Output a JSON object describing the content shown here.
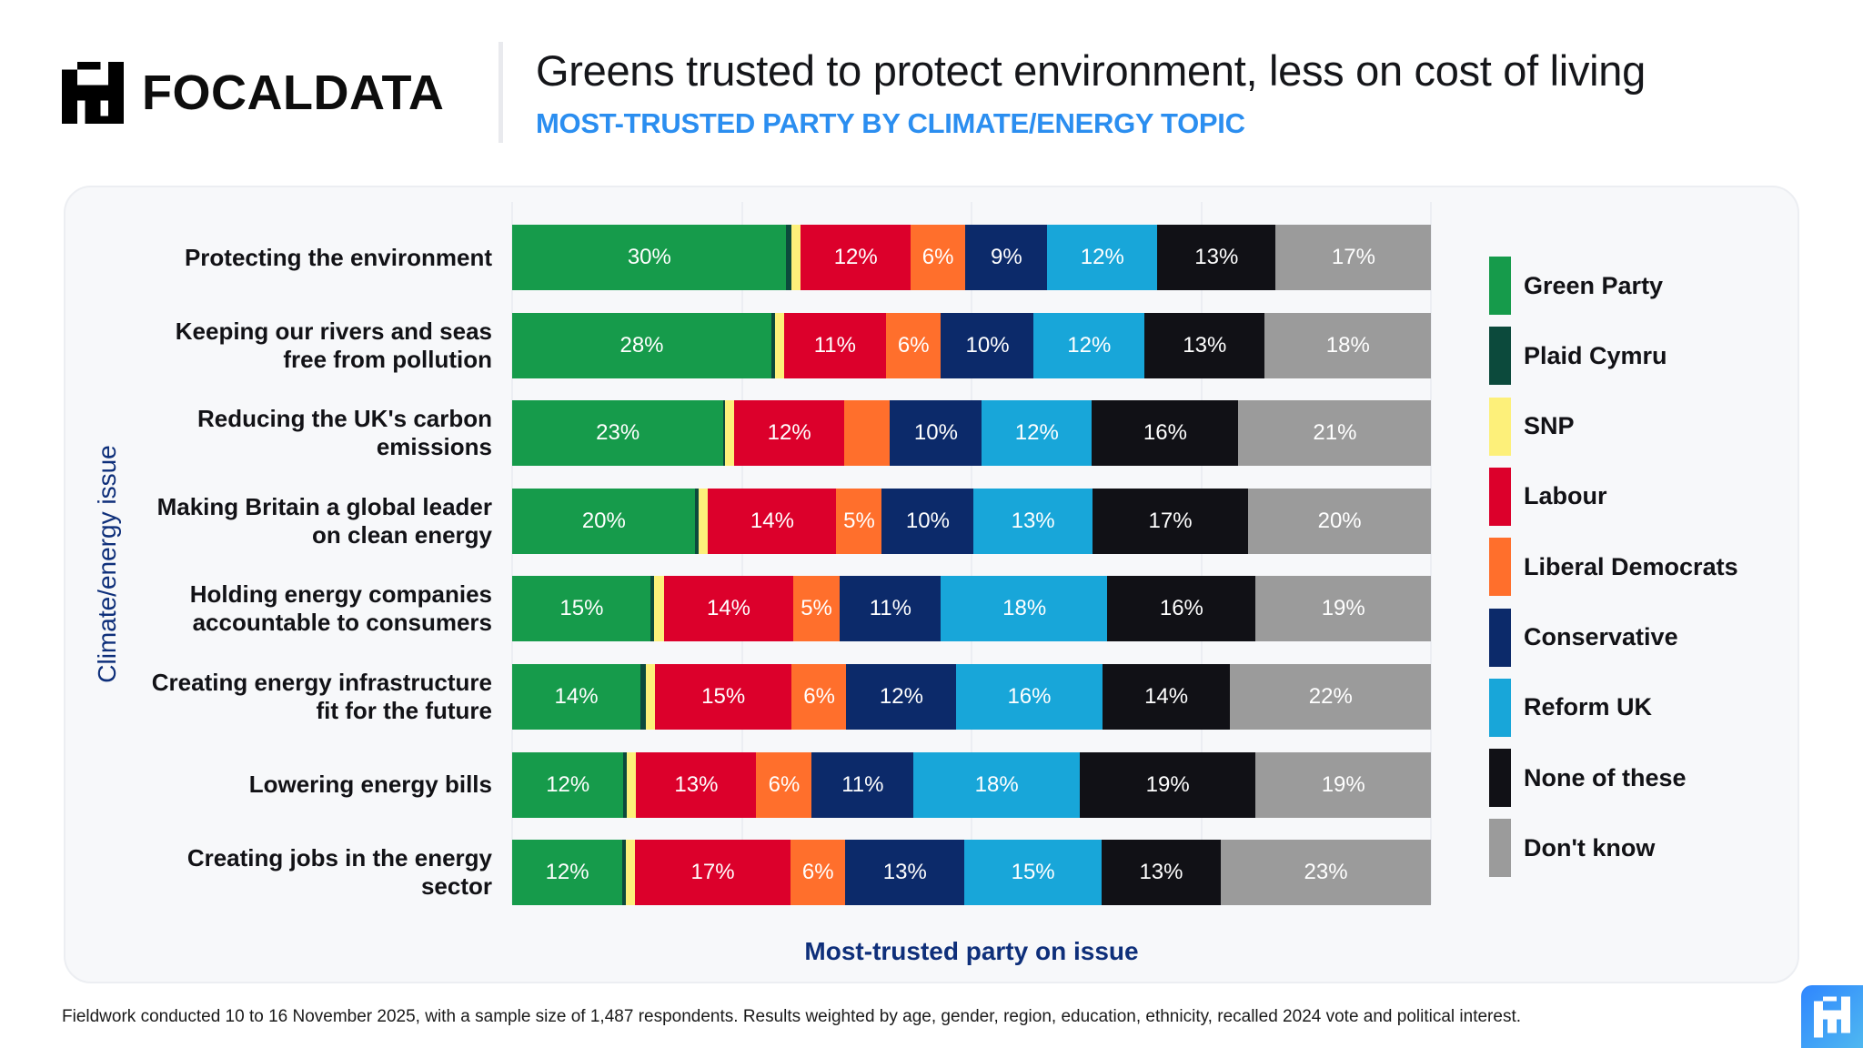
{
  "brand": {
    "name": "FOCALDATA",
    "logo_icon": "focaldata-pixel-icon"
  },
  "header": {
    "title": "Greens trusted to protect environment, less on cost of living",
    "subtitle": "MOST-TRUSTED PARTY BY CLIMATE/ENERGY TOPIC"
  },
  "footnote": "Fieldwork conducted 10 to 16 November 2025, with a sample size of 1,487 respondents. Results weighted by age, gender, region, education, ethnicity, recalled 2024 vote and political interest.",
  "colors": {
    "Green Party": "#169b4b",
    "Plaid Cymru": "#0c4a3c",
    "SNP": "#fdf07a",
    "Labour": "#dc002b",
    "Liberal Democrats": "#ff6f2c",
    "Conservative": "#0c2a6a",
    "Reform UK": "#18a6d9",
    "None of these": "#111116",
    "Don't know": "#9b9b9b",
    "subtitle_accent": "#2b8ef0",
    "axis_label": "#0e2f7a"
  },
  "chart_data": {
    "type": "bar",
    "orientation": "horizontal",
    "stacked": true,
    "title": "Greens trusted to protect environment, less on cost of living",
    "subtitle": "MOST-TRUSTED PARTY BY CLIMATE/ENERGY TOPIC",
    "xlabel": "Most-trusted party on issue",
    "ylabel": "Climate/energy issue",
    "xlim": [
      0,
      100
    ],
    "grid": true,
    "legend_position": "right",
    "categories": [
      "Protecting the environment",
      "Keeping our rivers and seas free from pollution",
      "Reducing the UK's carbon emissions",
      "Making Britain a global leader on clean energy",
      "Holding energy companies accountable to consumers",
      "Creating energy infrastructure fit for the future",
      "Lowering energy bills",
      "Creating jobs in the energy sector"
    ],
    "category_lines": [
      [
        "Protecting the environment"
      ],
      [
        "Keeping our rivers and seas",
        "free from pollution"
      ],
      [
        "Reducing the UK's carbon",
        "emissions"
      ],
      [
        "Making Britain a global leader",
        "on clean energy"
      ],
      [
        "Holding energy companies",
        "accountable to consumers"
      ],
      [
        "Creating energy infrastructure",
        "fit for the future"
      ],
      [
        "Lowering energy bills"
      ],
      [
        "Creating jobs in the energy",
        "sector"
      ]
    ],
    "series": [
      {
        "name": "Green Party",
        "values": [
          30,
          28,
          23,
          20,
          15,
          14,
          12,
          12
        ],
        "labels": [
          "30%",
          "28%",
          "23%",
          "20%",
          "15%",
          "14%",
          "12%",
          "12%"
        ]
      },
      {
        "name": "Plaid Cymru",
        "values": [
          0.6,
          0.4,
          0.2,
          0.4,
          0.4,
          0.6,
          0.4,
          0.4
        ],
        "labels": [
          "",
          "",
          "",
          "",
          "",
          "",
          "",
          ""
        ]
      },
      {
        "name": "SNP",
        "values": [
          1,
          1,
          1,
          1,
          1,
          1,
          1,
          1
        ],
        "labels": [
          "",
          "",
          "",
          "",
          "",
          "",
          "",
          ""
        ]
      },
      {
        "name": "Labour",
        "values": [
          12,
          11,
          12,
          14,
          14,
          15,
          13,
          17
        ],
        "labels": [
          "12%",
          "11%",
          "12%",
          "14%",
          "14%",
          "15%",
          "13%",
          "17%"
        ]
      },
      {
        "name": "Liberal Democrats",
        "values": [
          6,
          6,
          5,
          5,
          5,
          6,
          6,
          6
        ],
        "labels": [
          "6%",
          "6%",
          "",
          "5%",
          "5%",
          "6%",
          "6%",
          "6%"
        ]
      },
      {
        "name": "Conservative",
        "values": [
          9,
          10,
          10,
          10,
          11,
          12,
          11,
          13
        ],
        "labels": [
          "9%",
          "10%",
          "10%",
          "10%",
          "11%",
          "12%",
          "11%",
          "13%"
        ]
      },
      {
        "name": "Reform UK",
        "values": [
          12,
          12,
          12,
          13,
          18,
          16,
          18,
          15
        ],
        "labels": [
          "12%",
          "12%",
          "12%",
          "13%",
          "18%",
          "16%",
          "18%",
          "15%"
        ]
      },
      {
        "name": "None of these",
        "values": [
          13,
          13,
          16,
          17,
          16,
          14,
          19,
          13
        ],
        "labels": [
          "13%",
          "13%",
          "16%",
          "17%",
          "16%",
          "14%",
          "19%",
          "13%"
        ]
      },
      {
        "name": "Don't know",
        "values": [
          17,
          18,
          21,
          20,
          19,
          22,
          19,
          23
        ],
        "labels": [
          "17%",
          "18%",
          "21%",
          "20%",
          "19%",
          "22%",
          "19%",
          "23%"
        ]
      }
    ]
  }
}
